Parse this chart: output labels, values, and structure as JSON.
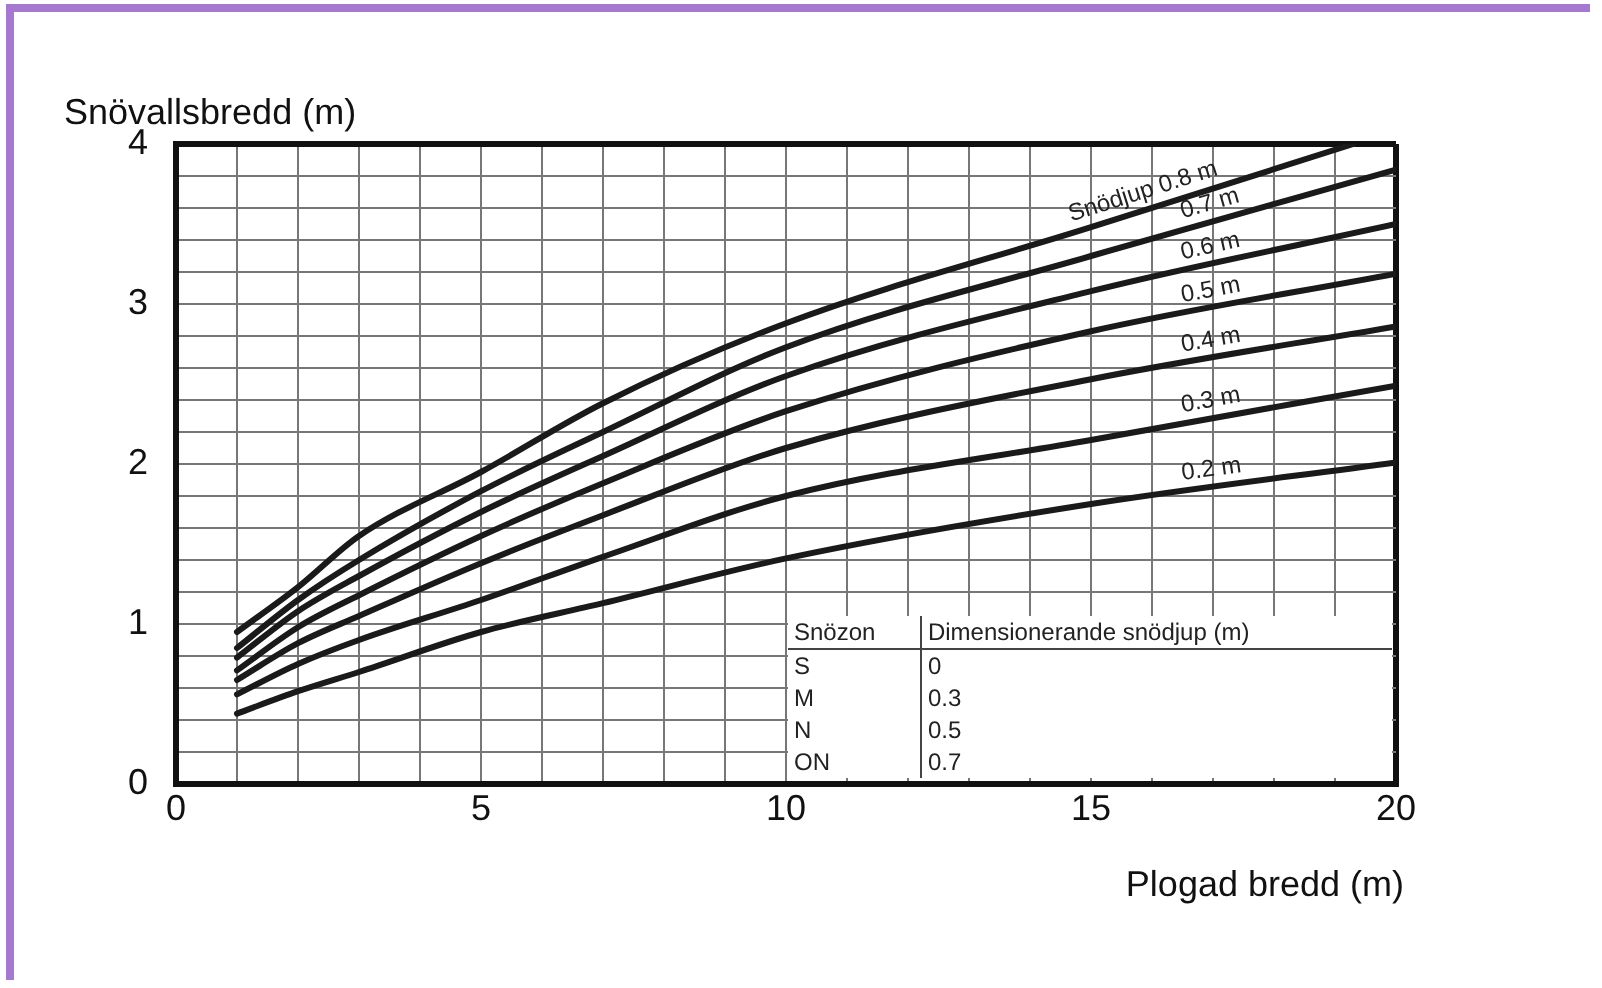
{
  "chart_data": {
    "type": "line",
    "xlabel": "Plogad bredd (m)",
    "ylabel": "Snövallsbredd (m)",
    "xlim": [
      0,
      20
    ],
    "ylim": [
      0,
      4
    ],
    "xticks": [
      0,
      {
        "value": 1,
        "label": null
      },
      {
        "value": 2,
        "label": null
      },
      {
        "value": 3,
        "label": null
      },
      {
        "value": 4,
        "label": null
      },
      5,
      {
        "value": 6,
        "label": null
      },
      {
        "value": 7,
        "label": null
      },
      {
        "value": 8,
        "label": null
      },
      {
        "value": 9,
        "label": null
      },
      10,
      {
        "value": 11,
        "label": null
      },
      {
        "value": 12,
        "label": null
      },
      {
        "value": 13,
        "label": null
      },
      {
        "value": 14,
        "label": null
      },
      15,
      {
        "value": 16,
        "label": null
      },
      {
        "value": 17,
        "label": null
      },
      {
        "value": 18,
        "label": null
      },
      {
        "value": 19,
        "label": null
      },
      20
    ],
    "yticks": [
      0,
      {
        "value": 0.2,
        "label": null
      },
      {
        "value": 0.4,
        "label": null
      },
      {
        "value": 0.6,
        "label": null
      },
      {
        "value": 0.8,
        "label": null
      },
      1,
      {
        "value": 1.2,
        "label": null
      },
      {
        "value": 1.4,
        "label": null
      },
      {
        "value": 1.6,
        "label": null
      },
      {
        "value": 1.8,
        "label": null
      },
      2,
      {
        "value": 2.2,
        "label": null
      },
      {
        "value": 2.4,
        "label": null
      },
      {
        "value": 2.6,
        "label": null
      },
      {
        "value": 2.8,
        "label": null
      },
      3,
      {
        "value": 3.2,
        "label": null
      },
      {
        "value": 3.4,
        "label": null
      },
      {
        "value": 3.6,
        "label": null
      },
      {
        "value": 3.8,
        "label": null
      },
      4
    ],
    "grid": true,
    "legend": false,
    "marker": "none",
    "line_style": "solid",
    "x": [
      1,
      2,
      3,
      5,
      7,
      10,
      15,
      20
    ],
    "series": [
      {
        "name": "0.2 m",
        "color": "#1a1a1a",
        "values": [
          0.44,
          0.58,
          0.7,
          0.95,
          1.13,
          1.41,
          1.75,
          2.01
        ]
      },
      {
        "name": "0.3 m",
        "color": "#1a1a1a",
        "values": [
          0.56,
          0.75,
          0.9,
          1.15,
          1.42,
          1.8,
          2.15,
          2.49
        ]
      },
      {
        "name": "0.4 m",
        "color": "#1a1a1a",
        "values": [
          0.65,
          0.88,
          1.05,
          1.38,
          1.68,
          2.1,
          2.53,
          2.86
        ]
      },
      {
        "name": "0.5 m",
        "color": "#1a1a1a",
        "values": [
          0.71,
          0.98,
          1.18,
          1.55,
          1.88,
          2.33,
          2.83,
          3.19
        ]
      },
      {
        "name": "0.6 m",
        "color": "#1a1a1a",
        "values": [
          0.79,
          1.08,
          1.3,
          1.7,
          2.05,
          2.55,
          3.08,
          3.5
        ]
      },
      {
        "name": "0.7 m",
        "color": "#1a1a1a",
        "values": [
          0.85,
          1.15,
          1.4,
          1.83,
          2.2,
          2.73,
          3.3,
          3.84
        ]
      },
      {
        "name": "Snödjup 0.8 m",
        "color": "#1a1a1a",
        "x": [
          1,
          2,
          3,
          5,
          7,
          10,
          15,
          19.3
        ],
        "values": [
          0.95,
          1.23,
          1.55,
          1.95,
          2.38,
          2.88,
          3.48,
          4
        ]
      }
    ],
    "annotations": [
      "Snözon",
      "Dimensionerande snödjup (m)",
      "S",
      "0",
      "M",
      "0.3",
      "N",
      "0.5",
      "ON",
      "0.7"
    ]
  }
}
